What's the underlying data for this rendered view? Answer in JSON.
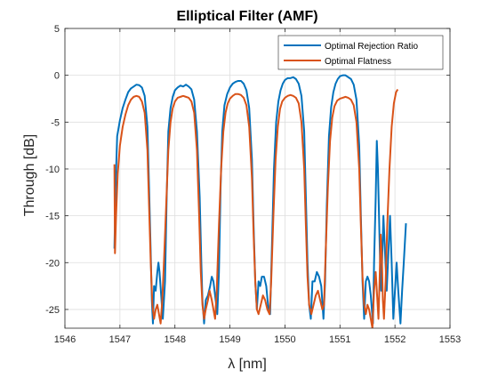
{
  "chart_data": {
    "type": "line",
    "title": "Elliptical Filter (AMF)",
    "xlabel": "λ [nm]",
    "ylabel": "Through [dB]",
    "xlim": [
      1546,
      1553
    ],
    "ylim": [
      -27,
      5
    ],
    "x_ticks": [
      1546,
      1547,
      1548,
      1549,
      1550,
      1551,
      1552,
      1553
    ],
    "y_ticks": [
      5,
      0,
      -5,
      -10,
      -15,
      -20,
      -25
    ],
    "grid": true,
    "legend_position": "top-right",
    "series": [
      {
        "name": "Optimal Rejection Ratio",
        "color": "#0072BD",
        "points": [
          [
            1546.9,
            -18.5
          ],
          [
            1546.92,
            -12
          ],
          [
            1546.95,
            -6.5
          ],
          [
            1547.0,
            -4.8
          ],
          [
            1547.05,
            -3.5
          ],
          [
            1547.1,
            -2.6
          ],
          [
            1547.15,
            -1.8
          ],
          [
            1547.2,
            -1.4
          ],
          [
            1547.25,
            -1.2
          ],
          [
            1547.3,
            -1.0
          ],
          [
            1547.35,
            -1.05
          ],
          [
            1547.4,
            -1.3
          ],
          [
            1547.45,
            -2.2
          ],
          [
            1547.5,
            -5.5
          ],
          [
            1547.53,
            -12
          ],
          [
            1547.56,
            -19
          ],
          [
            1547.58,
            -24
          ],
          [
            1547.6,
            -26.5
          ],
          [
            1547.62,
            -22.5
          ],
          [
            1547.65,
            -23
          ],
          [
            1547.68,
            -21
          ],
          [
            1547.7,
            -20
          ],
          [
            1547.72,
            -21
          ],
          [
            1547.75,
            -23.5
          ],
          [
            1547.78,
            -26
          ],
          [
            1547.82,
            -22
          ],
          [
            1547.85,
            -13
          ],
          [
            1547.88,
            -6
          ],
          [
            1547.92,
            -3.5
          ],
          [
            1547.96,
            -2.3
          ],
          [
            1548.0,
            -1.6
          ],
          [
            1548.05,
            -1.3
          ],
          [
            1548.1,
            -1.1
          ],
          [
            1548.15,
            -1.2
          ],
          [
            1548.2,
            -1.0
          ],
          [
            1548.25,
            -1.2
          ],
          [
            1548.3,
            -1.5
          ],
          [
            1548.35,
            -2.6
          ],
          [
            1548.4,
            -6
          ],
          [
            1548.45,
            -13
          ],
          [
            1548.48,
            -20
          ],
          [
            1548.5,
            -24
          ],
          [
            1548.53,
            -26.5
          ],
          [
            1548.56,
            -24
          ],
          [
            1548.6,
            -23.5
          ],
          [
            1548.64,
            -22.5
          ],
          [
            1548.67,
            -21.5
          ],
          [
            1548.7,
            -22
          ],
          [
            1548.74,
            -24
          ],
          [
            1548.77,
            -25.5
          ],
          [
            1548.8,
            -21
          ],
          [
            1548.83,
            -12
          ],
          [
            1548.86,
            -6
          ],
          [
            1548.9,
            -3.2
          ],
          [
            1548.95,
            -2
          ],
          [
            1549.0,
            -1.3
          ],
          [
            1549.05,
            -0.9
          ],
          [
            1549.1,
            -0.7
          ],
          [
            1549.15,
            -0.6
          ],
          [
            1549.2,
            -0.6
          ],
          [
            1549.25,
            -0.9
          ],
          [
            1549.3,
            -1.6
          ],
          [
            1549.35,
            -3.5
          ],
          [
            1549.4,
            -9
          ],
          [
            1549.43,
            -16
          ],
          [
            1549.46,
            -22
          ],
          [
            1549.49,
            -25
          ],
          [
            1549.52,
            -22
          ],
          [
            1549.55,
            -22.5
          ],
          [
            1549.58,
            -21.5
          ],
          [
            1549.62,
            -21.5
          ],
          [
            1549.66,
            -22.5
          ],
          [
            1549.7,
            -25
          ],
          [
            1549.73,
            -25.5
          ],
          [
            1549.76,
            -19
          ],
          [
            1549.8,
            -10
          ],
          [
            1549.84,
            -5
          ],
          [
            1549.88,
            -2.8
          ],
          [
            1549.92,
            -1.6
          ],
          [
            1549.96,
            -0.9
          ],
          [
            1550.0,
            -0.5
          ],
          [
            1550.05,
            -0.3
          ],
          [
            1550.1,
            -0.3
          ],
          [
            1550.15,
            -0.2
          ],
          [
            1550.2,
            -0.4
          ],
          [
            1550.25,
            -0.9
          ],
          [
            1550.3,
            -2.2
          ],
          [
            1550.35,
            -6
          ],
          [
            1550.38,
            -13
          ],
          [
            1550.41,
            -20
          ],
          [
            1550.44,
            -24.5
          ],
          [
            1550.47,
            -26
          ],
          [
            1550.5,
            -22
          ],
          [
            1550.54,
            -22
          ],
          [
            1550.58,
            -21
          ],
          [
            1550.62,
            -21.5
          ],
          [
            1550.66,
            -22.5
          ],
          [
            1550.7,
            -26
          ],
          [
            1550.73,
            -22
          ],
          [
            1550.76,
            -14
          ],
          [
            1550.8,
            -6.5
          ],
          [
            1550.84,
            -3.4
          ],
          [
            1550.88,
            -1.8
          ],
          [
            1550.92,
            -0.9
          ],
          [
            1550.96,
            -0.4
          ],
          [
            1551.0,
            -0.1
          ],
          [
            1551.05,
            0.0
          ],
          [
            1551.1,
            0.0
          ],
          [
            1551.15,
            -0.2
          ],
          [
            1551.2,
            -0.4
          ],
          [
            1551.25,
            -1.0
          ],
          [
            1551.3,
            -2.6
          ],
          [
            1551.35,
            -7.5
          ],
          [
            1551.38,
            -15
          ],
          [
            1551.41,
            -22
          ],
          [
            1551.44,
            -26
          ],
          [
            1551.47,
            -22
          ],
          [
            1551.5,
            -21.5
          ],
          [
            1551.53,
            -22
          ],
          [
            1551.56,
            -23.5
          ],
          [
            1551.6,
            -26.5
          ],
          [
            1551.62,
            -20
          ],
          [
            1551.65,
            -13
          ],
          [
            1551.67,
            -7
          ],
          [
            1551.69,
            -10
          ],
          [
            1551.71,
            -15
          ],
          [
            1551.73,
            -20
          ],
          [
            1551.75,
            -23
          ],
          [
            1551.77,
            -19
          ],
          [
            1551.79,
            -15
          ],
          [
            1551.82,
            -19
          ],
          [
            1551.85,
            -23
          ],
          [
            1551.88,
            -19
          ],
          [
            1551.91,
            -15
          ],
          [
            1551.94,
            -20
          ],
          [
            1551.97,
            -26
          ],
          [
            1552.0,
            -23
          ],
          [
            1552.03,
            -20
          ],
          [
            1552.06,
            -23
          ],
          [
            1552.1,
            -26.5
          ],
          [
            1552.13,
            -23
          ],
          [
            1552.16,
            -20
          ],
          [
            1552.2,
            -15.8
          ]
        ]
      },
      {
        "name": "Optimal Flatness",
        "color": "#D95319",
        "points": [
          [
            1546.9,
            -9.5
          ],
          [
            1546.91,
            -19
          ],
          [
            1546.93,
            -15
          ],
          [
            1546.96,
            -10.5
          ],
          [
            1547.0,
            -7.5
          ],
          [
            1547.05,
            -5.5
          ],
          [
            1547.1,
            -4.2
          ],
          [
            1547.15,
            -3.2
          ],
          [
            1547.2,
            -2.6
          ],
          [
            1547.25,
            -2.3
          ],
          [
            1547.3,
            -2.2
          ],
          [
            1547.35,
            -2.3
          ],
          [
            1547.4,
            -2.8
          ],
          [
            1547.45,
            -4
          ],
          [
            1547.5,
            -8
          ],
          [
            1547.53,
            -14
          ],
          [
            1547.56,
            -20
          ],
          [
            1547.59,
            -24.5
          ],
          [
            1547.62,
            -26
          ],
          [
            1547.65,
            -25
          ],
          [
            1547.68,
            -24.5
          ],
          [
            1547.71,
            -25.5
          ],
          [
            1547.74,
            -26.5
          ],
          [
            1547.77,
            -24
          ],
          [
            1547.8,
            -20
          ],
          [
            1547.84,
            -14
          ],
          [
            1547.88,
            -8
          ],
          [
            1547.92,
            -5
          ],
          [
            1547.96,
            -3.5
          ],
          [
            1548.0,
            -2.8
          ],
          [
            1548.05,
            -2.4
          ],
          [
            1548.1,
            -2.3
          ],
          [
            1548.15,
            -2.2
          ],
          [
            1548.2,
            -2.3
          ],
          [
            1548.25,
            -2.4
          ],
          [
            1548.3,
            -2.8
          ],
          [
            1548.35,
            -4
          ],
          [
            1548.4,
            -8
          ],
          [
            1548.44,
            -15
          ],
          [
            1548.47,
            -21
          ],
          [
            1548.5,
            -24.5
          ],
          [
            1548.53,
            -26
          ],
          [
            1548.56,
            -25
          ],
          [
            1548.6,
            -24
          ],
          [
            1548.63,
            -23
          ],
          [
            1548.67,
            -24
          ],
          [
            1548.7,
            -25
          ],
          [
            1548.73,
            -26
          ],
          [
            1548.76,
            -23
          ],
          [
            1548.8,
            -16
          ],
          [
            1548.84,
            -10
          ],
          [
            1548.88,
            -6
          ],
          [
            1548.92,
            -4
          ],
          [
            1548.96,
            -3
          ],
          [
            1549.0,
            -2.5
          ],
          [
            1549.05,
            -2.2
          ],
          [
            1549.1,
            -2.0
          ],
          [
            1549.15,
            -2.0
          ],
          [
            1549.2,
            -2.1
          ],
          [
            1549.25,
            -2.4
          ],
          [
            1549.3,
            -3.2
          ],
          [
            1549.35,
            -5.5
          ],
          [
            1549.4,
            -11
          ],
          [
            1549.43,
            -17
          ],
          [
            1549.46,
            -22
          ],
          [
            1549.49,
            -25
          ],
          [
            1549.52,
            -25.5
          ],
          [
            1549.56,
            -24.5
          ],
          [
            1549.6,
            -23.5
          ],
          [
            1549.64,
            -24
          ],
          [
            1549.68,
            -25
          ],
          [
            1549.72,
            -25.5
          ],
          [
            1549.75,
            -22
          ],
          [
            1549.79,
            -15
          ],
          [
            1549.83,
            -9
          ],
          [
            1549.87,
            -5.5
          ],
          [
            1549.91,
            -3.6
          ],
          [
            1549.95,
            -2.8
          ],
          [
            1550.0,
            -2.4
          ],
          [
            1550.05,
            -2.2
          ],
          [
            1550.1,
            -2.1
          ],
          [
            1550.15,
            -2.2
          ],
          [
            1550.2,
            -2.4
          ],
          [
            1550.25,
            -3
          ],
          [
            1550.3,
            -5
          ],
          [
            1550.35,
            -10
          ],
          [
            1550.38,
            -16
          ],
          [
            1550.41,
            -21.5
          ],
          [
            1550.44,
            -24.5
          ],
          [
            1550.48,
            -25.5
          ],
          [
            1550.52,
            -24.5
          ],
          [
            1550.56,
            -23.5
          ],
          [
            1550.6,
            -23
          ],
          [
            1550.64,
            -24
          ],
          [
            1550.68,
            -25
          ],
          [
            1550.71,
            -24.5
          ],
          [
            1550.74,
            -19
          ],
          [
            1550.78,
            -12
          ],
          [
            1550.82,
            -7
          ],
          [
            1550.86,
            -4.5
          ],
          [
            1550.9,
            -3.3
          ],
          [
            1550.95,
            -2.7
          ],
          [
            1551.0,
            -2.5
          ],
          [
            1551.05,
            -2.4
          ],
          [
            1551.1,
            -2.3
          ],
          [
            1551.15,
            -2.4
          ],
          [
            1551.2,
            -2.6
          ],
          [
            1551.25,
            -3.2
          ],
          [
            1551.3,
            -5
          ],
          [
            1551.35,
            -10
          ],
          [
            1551.38,
            -16
          ],
          [
            1551.41,
            -21.5
          ],
          [
            1551.44,
            -24.5
          ],
          [
            1551.47,
            -25.5
          ],
          [
            1551.5,
            -24.5
          ],
          [
            1551.53,
            -25
          ],
          [
            1551.56,
            -26
          ],
          [
            1551.59,
            -27
          ],
          [
            1551.62,
            -23
          ],
          [
            1551.65,
            -21
          ],
          [
            1551.68,
            -24
          ],
          [
            1551.7,
            -26
          ],
          [
            1551.72,
            -22
          ],
          [
            1551.74,
            -17
          ],
          [
            1551.76,
            -19
          ],
          [
            1551.78,
            -24
          ],
          [
            1551.8,
            -26
          ],
          [
            1551.83,
            -22
          ],
          [
            1551.86,
            -16
          ],
          [
            1551.9,
            -10
          ],
          [
            1551.94,
            -5.5
          ],
          [
            1551.98,
            -3
          ],
          [
            1552.02,
            -1.8
          ],
          [
            1552.05,
            -1.5
          ]
        ]
      }
    ]
  }
}
